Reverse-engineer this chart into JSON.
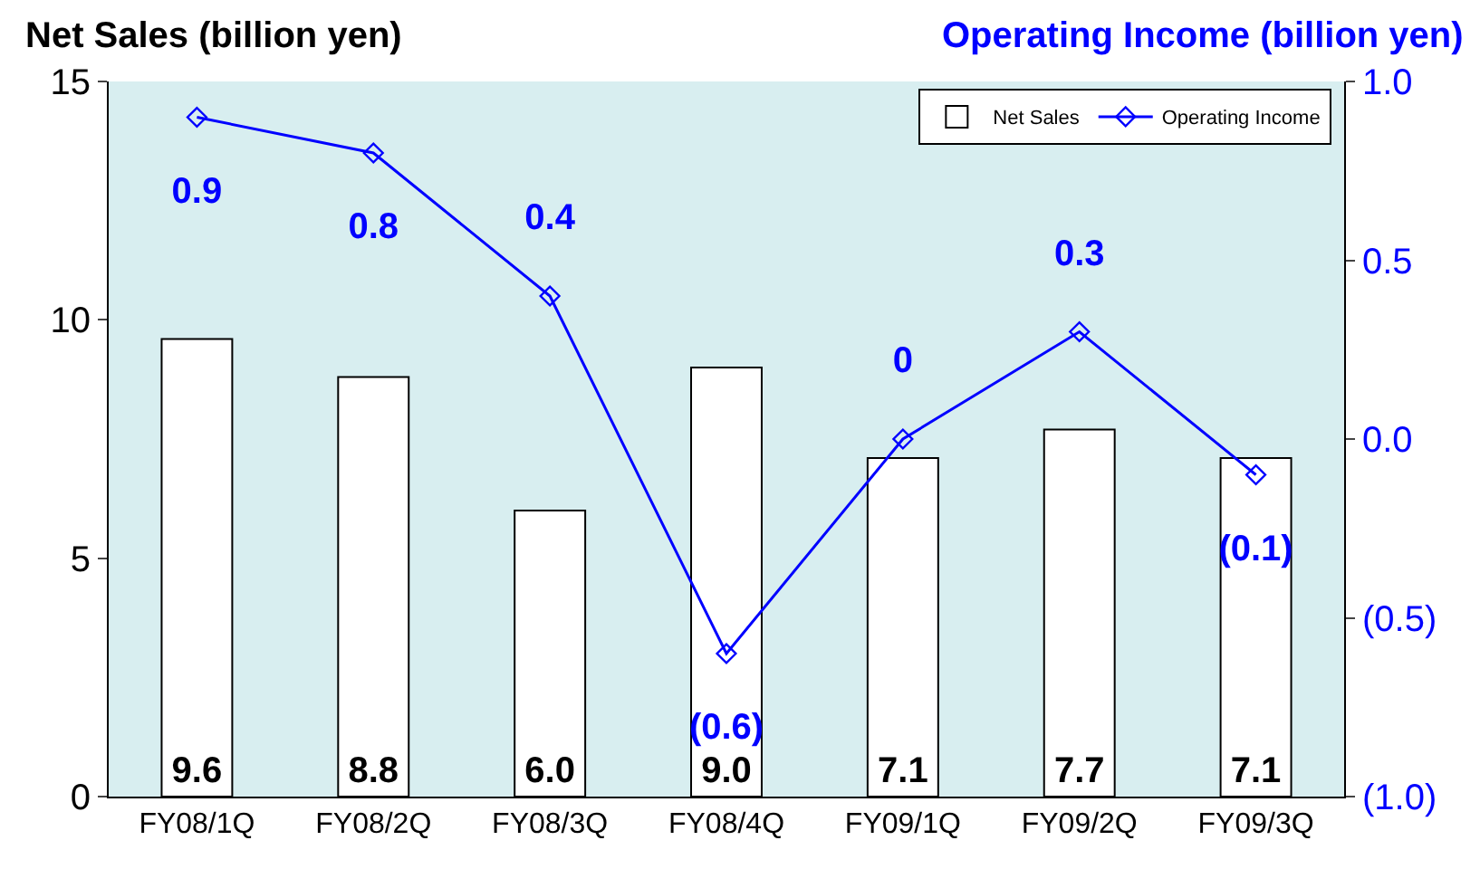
{
  "chart_data": {
    "type": "bar",
    "ylabel": "Net Sales (billion yen)",
    "y2label": "Operating Income (billion yen)",
    "categories": [
      "FY08/1Q",
      "FY08/2Q",
      "FY08/3Q",
      "FY08/4Q",
      "FY09/1Q",
      "FY09/2Q",
      "FY09/3Q"
    ],
    "series": [
      {
        "name": "Net Sales",
        "color": "#ffffff",
        "values": [
          9.6,
          8.8,
          6.0,
          9.0,
          7.1,
          7.7,
          7.1
        ],
        "value_labels": [
          "9.6",
          "8.8",
          "6.0",
          "9.0",
          "7.1",
          "7.7",
          "7.1"
        ]
      },
      {
        "name": "Operating Income",
        "type": "line",
        "axis": "y2",
        "color": "#0000ff",
        "marker": "diamond",
        "values": [
          0.9,
          0.8,
          0.4,
          -0.6,
          0,
          0.3,
          -0.1
        ],
        "value_labels": [
          "0.9",
          "0.8",
          "0.4",
          "(0.6)",
          "0",
          "0.3",
          "(0.1)"
        ]
      }
    ],
    "ylim": [
      0,
      15
    ],
    "yticks": [
      0,
      5,
      10,
      15
    ],
    "y2lim": [
      -1.0,
      1.0
    ],
    "y2ticks": [
      {
        "value": -1.0,
        "label": "(1.0)"
      },
      {
        "value": -0.5,
        "label": "(0.5)"
      },
      {
        "value": 0.0,
        "label": "0.0"
      },
      {
        "value": 0.5,
        "label": "0.5"
      },
      {
        "value": 1.0,
        "label": "1.0"
      }
    ],
    "grid": false,
    "legend": "top right"
  }
}
